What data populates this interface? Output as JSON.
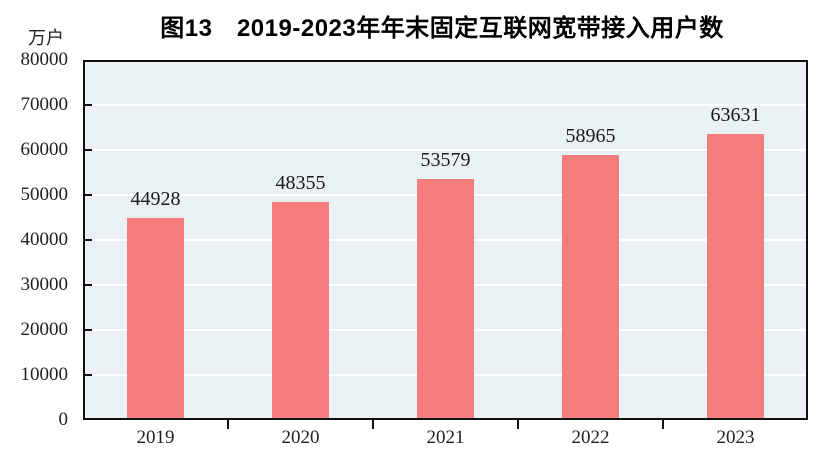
{
  "title": "图13　2019-2023年年末固定互联网宽带接入用户数",
  "unit_label": "万户",
  "colors": {
    "bar": "#f67d7d",
    "plot_bg": "#e9f1f4",
    "grid": "#ffffff",
    "axis": "#111111",
    "text": "#1f1f1f"
  },
  "chart_data": {
    "type": "bar",
    "title": "图13　2019-2023年年末固定互联网宽带接入用户数",
    "categories": [
      "2019",
      "2020",
      "2021",
      "2022",
      "2023"
    ],
    "values": [
      44928,
      48355,
      53579,
      58965,
      63631
    ],
    "xlabel": "",
    "ylabel": "万户",
    "ylim": [
      0,
      80000
    ],
    "ytick_step": 10000,
    "ytick_labels": [
      "0",
      "10000",
      "20000",
      "30000",
      "40000",
      "50000",
      "60000",
      "70000",
      "80000"
    ],
    "grid": true,
    "gridline_orientation": "horizontal",
    "legend_position": "none",
    "bar_labels_shown": true
  }
}
